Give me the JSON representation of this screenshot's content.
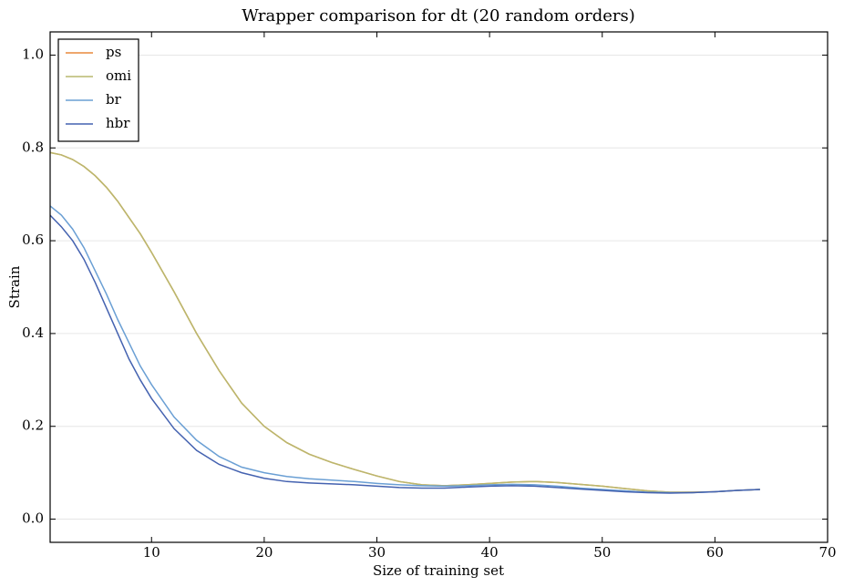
{
  "chart_data": {
    "type": "line",
    "title": "Wrapper comparison for dt (20 random orders)",
    "x_label": "Size of training set",
    "y_label": "Strain",
    "x": [
      1,
      2,
      3,
      4,
      5,
      6,
      7,
      8,
      9,
      10,
      12,
      14,
      16,
      18,
      20,
      22,
      24,
      26,
      28,
      30,
      32,
      34,
      36,
      38,
      40,
      42,
      44,
      46,
      48,
      50,
      52,
      54,
      56,
      58,
      60,
      62,
      64
    ],
    "series": [
      {
        "name": "ps",
        "color": "#e8893c",
        "values": [
          0.79,
          0.785,
          0.775,
          0.76,
          0.74,
          0.715,
          0.685,
          0.65,
          0.615,
          0.575,
          0.49,
          0.4,
          0.32,
          0.25,
          0.2,
          0.165,
          0.14,
          0.122,
          0.107,
          0.093,
          0.081,
          0.074,
          0.072,
          0.074,
          0.077,
          0.08,
          0.081,
          0.079,
          0.075,
          0.071,
          0.066,
          0.061,
          0.058,
          0.058,
          0.059,
          0.062,
          0.064
        ]
      },
      {
        "name": "omi",
        "color": "#b9b86e",
        "values": [
          0.79,
          0.785,
          0.775,
          0.76,
          0.74,
          0.715,
          0.685,
          0.65,
          0.615,
          0.575,
          0.49,
          0.4,
          0.32,
          0.25,
          0.2,
          0.165,
          0.14,
          0.122,
          0.107,
          0.093,
          0.081,
          0.074,
          0.072,
          0.074,
          0.077,
          0.08,
          0.081,
          0.079,
          0.075,
          0.071,
          0.066,
          0.061,
          0.058,
          0.058,
          0.059,
          0.062,
          0.064
        ]
      },
      {
        "name": "br",
        "color": "#6a9fd4",
        "values": [
          0.675,
          0.655,
          0.625,
          0.585,
          0.535,
          0.485,
          0.43,
          0.38,
          0.33,
          0.29,
          0.22,
          0.17,
          0.135,
          0.112,
          0.1,
          0.092,
          0.087,
          0.084,
          0.081,
          0.077,
          0.074,
          0.072,
          0.071,
          0.072,
          0.074,
          0.075,
          0.074,
          0.071,
          0.067,
          0.064,
          0.061,
          0.058,
          0.057,
          0.057,
          0.059,
          0.062,
          0.064
        ]
      },
      {
        "name": "hbr",
        "color": "#4462b0",
        "values": [
          0.655,
          0.63,
          0.6,
          0.56,
          0.51,
          0.455,
          0.4,
          0.345,
          0.3,
          0.26,
          0.195,
          0.148,
          0.118,
          0.1,
          0.088,
          0.081,
          0.078,
          0.076,
          0.074,
          0.071,
          0.068,
          0.067,
          0.067,
          0.069,
          0.071,
          0.072,
          0.071,
          0.068,
          0.065,
          0.062,
          0.059,
          0.057,
          0.056,
          0.057,
          0.059,
          0.062,
          0.064
        ]
      }
    ],
    "xlim": [
      1,
      70
    ],
    "xticks": [
      10,
      20,
      30,
      40,
      50,
      60,
      70
    ],
    "ylim": [
      -0.05,
      1.05
    ],
    "yticks": [
      {
        "value": 0,
        "label": "0.0"
      },
      {
        "value": 0.2,
        "label": "0.2"
      },
      {
        "value": 0.4,
        "label": "0.4"
      },
      {
        "value": 0.6,
        "label": "0.6"
      },
      {
        "value": 0.8,
        "label": "0.8"
      },
      {
        "value": 1,
        "label": "1.0"
      }
    ],
    "grid": true,
    "legend": "upper left"
  }
}
